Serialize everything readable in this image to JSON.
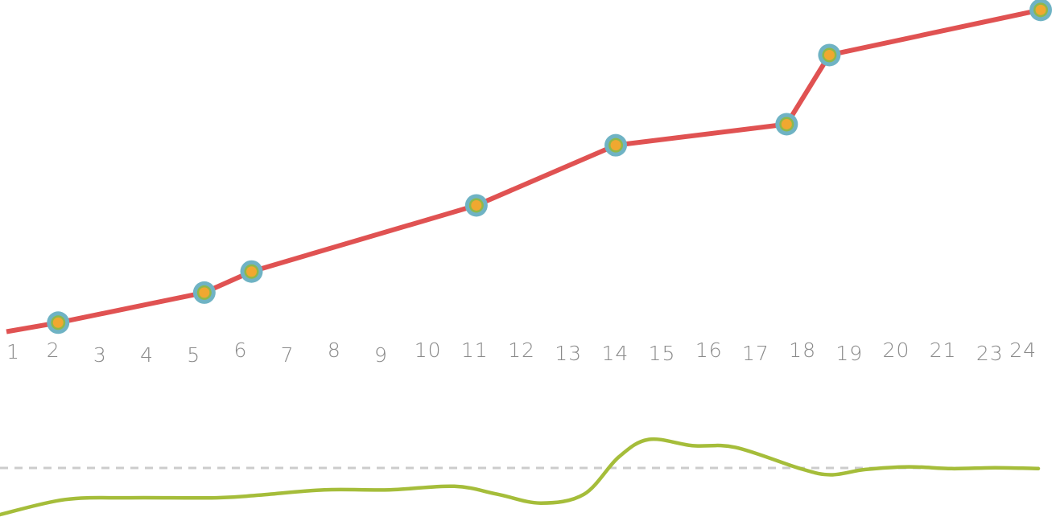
{
  "chart_data": [
    {
      "type": "line",
      "title": "",
      "xlabel": "",
      "ylabel": "",
      "x_ticks": [
        "1",
        "2",
        "3",
        "4",
        "5",
        "6",
        "7",
        "8",
        "9",
        "10",
        "11",
        "12",
        "13",
        "14",
        "15",
        "16",
        "17",
        "18",
        "19",
        "20",
        "21",
        "23",
        "24"
      ],
      "xlim": [
        0.85,
        23.85
      ],
      "ylim": [
        0,
        100
      ],
      "grid": false,
      "legend": "none",
      "line_color": "#e05252",
      "marker_outer_color": "#6fb3c4",
      "marker_inner_color": "#f0a830",
      "series": [
        {
          "x": [
            0.85,
            2.0,
            5.25,
            6.3,
            11.3,
            14.4,
            18.2,
            19.15,
            23.85
          ],
          "y": [
            2,
            5,
            15,
            22,
            44,
            64,
            71,
            94,
            109
          ],
          "markers": [
            false,
            true,
            true,
            true,
            true,
            true,
            true,
            true,
            true
          ]
        }
      ]
    },
    {
      "type": "area",
      "title": "",
      "xlabel": "",
      "ylabel": "",
      "xlim": [
        0,
        24
      ],
      "ylim": [
        0,
        100
      ],
      "reference_line": 50,
      "reference_color": "#cccccc",
      "line_color": "#a5bd3a",
      "series": [
        {
          "x": [
            0,
            1.5,
            3,
            5,
            6,
            7.5,
            9,
            10.5,
            11.5,
            12.5,
            13.5,
            14.3,
            15,
            16,
            17,
            18.5,
            19.2,
            20,
            21,
            22,
            23,
            24
          ],
          "y": [
            0,
            17,
            19,
            19,
            22,
            28,
            28,
            32,
            23,
            13,
            23,
            65,
            85,
            78,
            76,
            52,
            45,
            51,
            54,
            52,
            53,
            52
          ]
        }
      ]
    }
  ]
}
